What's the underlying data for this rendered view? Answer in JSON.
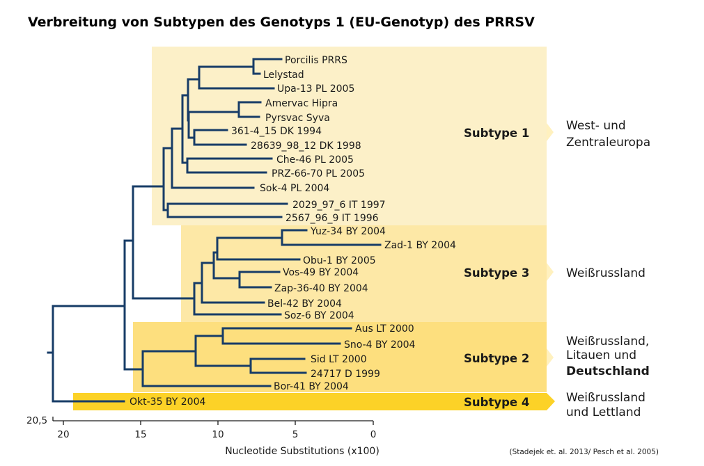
{
  "title": "Verbreitung von Subtypen des Genotyps 1 (EU-Genotyp) des PRRSV",
  "colors": {
    "branch": "#173c67",
    "subtype1": "#fcf0c8",
    "subtype3": "#fde8a6",
    "subtype2": "#fddf7e",
    "subtype4": "#fcd227",
    "arrow": "#fff1bf"
  },
  "leaves": [
    {
      "label": "Porcilis PRRS"
    },
    {
      "label": "Lelystad"
    },
    {
      "label": "Upa-13 PL 2005"
    },
    {
      "label": "Amervac Hipra"
    },
    {
      "label": "Pyrsvac Syva"
    },
    {
      "label": "361-4_15 DK 1994"
    },
    {
      "label": "28639_98_12 DK 1998"
    },
    {
      "label": "Che-46 PL 2005"
    },
    {
      "label": "PRZ-66-70 PL 2005"
    },
    {
      "label": "Sok-4 PL 2004"
    },
    {
      "label": "2029_97_6 IT 1997"
    },
    {
      "label": "2567_96_9 IT 1996"
    },
    {
      "label": "Yuz-34 BY 2004"
    },
    {
      "label": "Zad-1 BY 2004"
    },
    {
      "label": "Obu-1 BY 2005"
    },
    {
      "label": "Vos-49 BY 2004"
    },
    {
      "label": "Zap-36-40 BY 2004"
    },
    {
      "label": "Bel-42 BY 2004"
    },
    {
      "label": "Soz-6 BY 2004"
    },
    {
      "label": "Aus LT 2000"
    },
    {
      "label": "Sno-4 BY 2004"
    },
    {
      "label": "Sid LT 2000"
    },
    {
      "label": "24717 D 1999"
    },
    {
      "label": "Bor-41 BY 2004"
    },
    {
      "label": "Okt-35 BY 2004"
    }
  ],
  "subtypes": [
    {
      "label": "Subtype 1",
      "region": [
        "West- und",
        "Zentraleuropa"
      ],
      "bold_last": false
    },
    {
      "label": "Subtype 3",
      "region": [
        "Weißrussland"
      ],
      "bold_last": false
    },
    {
      "label": "Subtype 2",
      "region": [
        "Weißrussland,",
        "Litauen und",
        "Deutschland"
      ],
      "bold_last": true
    },
    {
      "label": "Subtype 4",
      "region": [
        "Weißrussland",
        "und Lettland"
      ],
      "bold_last": false
    }
  ],
  "axis": {
    "root_value": "20,5",
    "ticks": [
      {
        "label": "20",
        "value": 20
      },
      {
        "label": "15",
        "value": 15
      },
      {
        "label": "10",
        "value": 10
      },
      {
        "label": "5",
        "value": 5
      },
      {
        "label": "0",
        "value": 0
      }
    ],
    "label": "Nucleotide Substitutions (x100)"
  },
  "source": "(Stadejek et. al. 2013/ Pesch et al. 2005)"
}
